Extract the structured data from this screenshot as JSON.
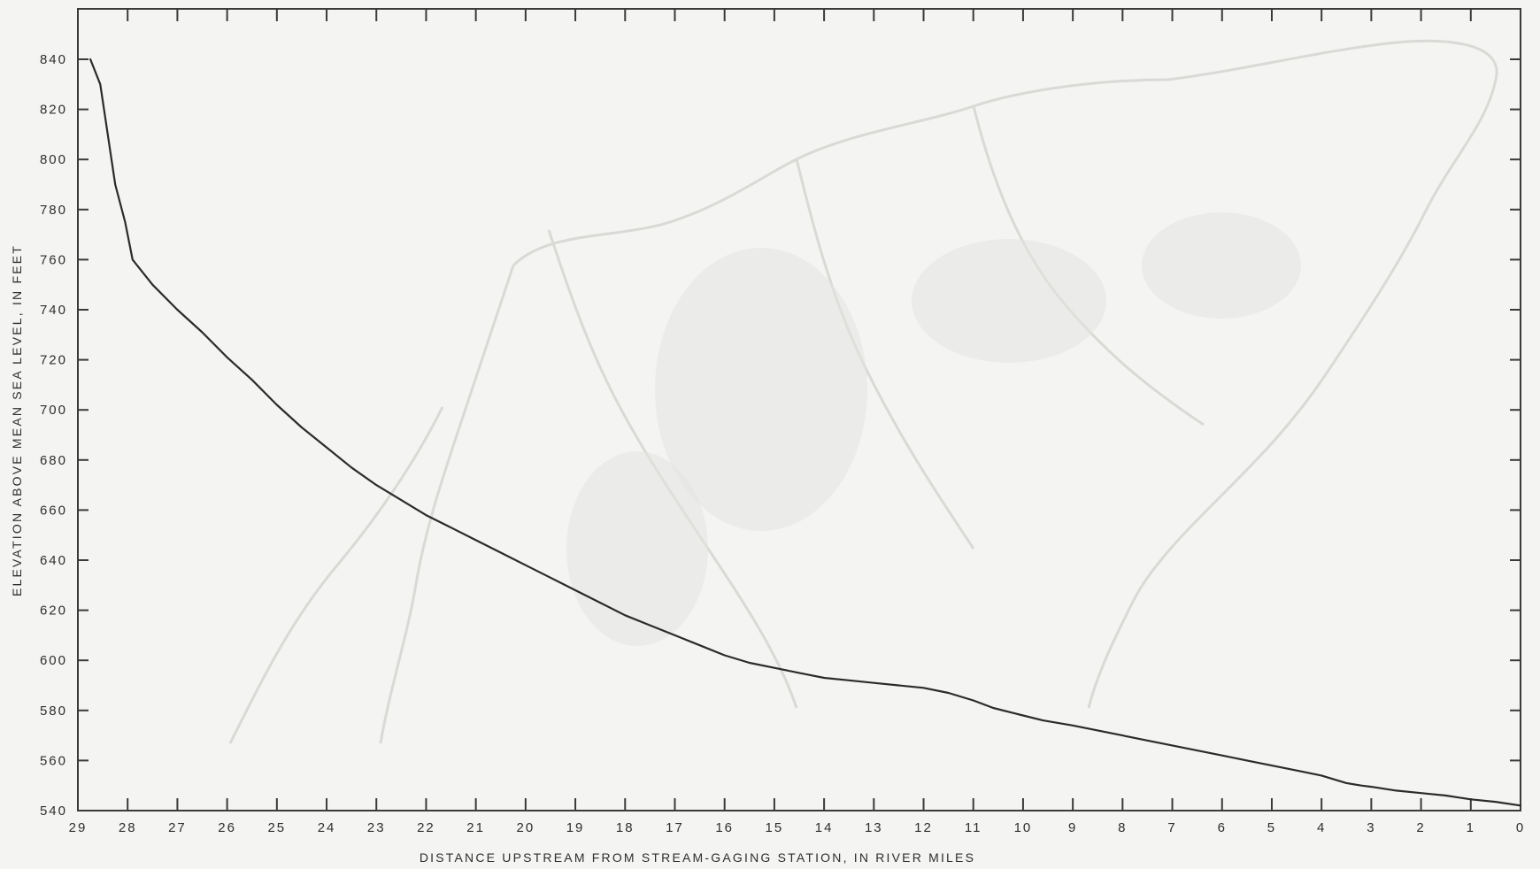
{
  "chart_data": {
    "type": "line",
    "xlabel": "DISTANCE UPSTREAM FROM STREAM-GAGING STATION, IN RIVER MILES",
    "ylabel": "ELEVATION ABOVE MEAN SEA LEVEL, IN FEET",
    "xlim": [
      29,
      0
    ],
    "x_reversed": true,
    "ylim": [
      540,
      840
    ],
    "xticks": [
      29,
      28,
      27,
      26,
      25,
      24,
      23,
      22,
      21,
      20,
      19,
      18,
      17,
      16,
      15,
      14,
      13,
      12,
      11,
      10,
      9,
      8,
      7,
      6,
      5,
      4,
      3,
      2,
      1,
      0
    ],
    "xtick_labels": [
      "29",
      "28",
      "27",
      "26",
      "25",
      "24",
      "23",
      "22",
      "21",
      "20",
      "19",
      "18",
      "17",
      "16",
      "15",
      "14",
      "13",
      "12",
      "11",
      "10",
      "9",
      "8",
      "7",
      "6",
      "5",
      "4",
      "3",
      "2",
      "1",
      "0"
    ],
    "yticks": [
      540,
      560,
      580,
      600,
      620,
      640,
      660,
      680,
      700,
      720,
      740,
      760,
      780,
      800,
      820,
      840
    ],
    "ytick_labels": [
      "540",
      "560",
      "580",
      "600",
      "620",
      "640",
      "660",
      "680",
      "700",
      "720",
      "740",
      "760",
      "780",
      "800",
      "820",
      "840"
    ],
    "grid": false,
    "series": [
      {
        "x": [
          28.75,
          28.55,
          28.25,
          28.05,
          27.9,
          27.5,
          27.0,
          26.5,
          26.0,
          25.5,
          25.0,
          24.5,
          24.0,
          23.5,
          23.0,
          22.5,
          22.0,
          21.5,
          21.0,
          20.5,
          20.0,
          19.5,
          19.0,
          18.5,
          18.0,
          17.5,
          17.0,
          16.5,
          16.0,
          15.5,
          15.0,
          14.5,
          14.0,
          13.5,
          13.0,
          12.5,
          12.0,
          11.5,
          11.0,
          10.6,
          10.0,
          9.6,
          9.0,
          8.5,
          8.0,
          7.5,
          7.0,
          6.5,
          6.0,
          5.5,
          5.0,
          4.5,
          4.0,
          3.5,
          3.2,
          3.0,
          2.5,
          2.0,
          1.5,
          1.0,
          0.5,
          0.0
        ],
        "y": [
          840,
          830,
          790,
          775,
          760,
          750,
          740,
          731,
          721,
          712,
          702,
          693,
          685,
          677,
          670,
          664,
          658,
          653,
          648,
          643,
          638,
          633,
          628,
          623,
          618,
          614,
          610,
          606,
          602,
          599,
          597,
          595,
          593,
          592,
          591,
          590,
          589,
          587,
          584,
          581,
          578,
          576,
          574,
          572,
          570,
          568,
          566,
          564,
          562,
          560,
          558,
          556,
          554,
          551,
          550,
          549.5,
          548,
          547,
          546,
          544.5,
          543.5,
          542
        ]
      }
    ]
  }
}
